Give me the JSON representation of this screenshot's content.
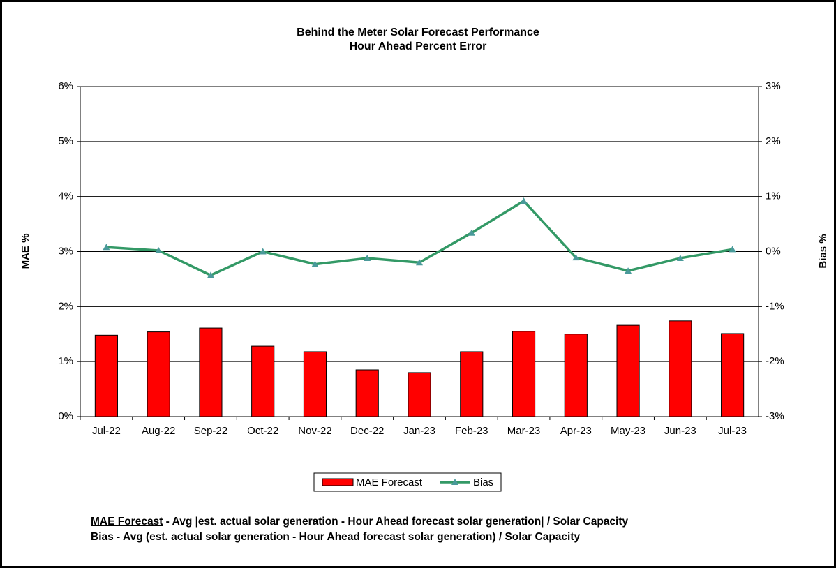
{
  "chart_data": {
    "type": "bar_line",
    "title": "Behind the Meter Solar Forecast Performance",
    "subtitle": "Hour Ahead Percent Error",
    "y_label": "MAE %",
    "y2_label": "Bias %",
    "categories": [
      "Jul-22",
      "Aug-22",
      "Sep-22",
      "Oct-22",
      "Nov-22",
      "Dec-22",
      "Jan-23",
      "Feb-23",
      "Mar-23",
      "Apr-23",
      "May-23",
      "Jun-23",
      "Jul-23"
    ],
    "series": [
      {
        "name": "MAE Forecast",
        "type": "bar",
        "color": "#ff0000",
        "values": [
          1.48,
          1.54,
          1.61,
          1.28,
          1.18,
          0.85,
          0.8,
          1.18,
          1.55,
          1.5,
          1.66,
          1.74,
          1.51
        ]
      },
      {
        "name": "Bias",
        "type": "line",
        "axis": "y2",
        "color": "#339966",
        "marker_color": "#4a9a9a",
        "values": [
          0.08,
          0.02,
          -0.43,
          0,
          -0.23,
          -0.12,
          -0.2,
          0.34,
          0.92,
          -0.11,
          -0.35,
          -0.12,
          0.04
        ]
      }
    ],
    "ylim": [
      0,
      6
    ],
    "yticks": [
      {
        "value": 0,
        "label": "0%"
      },
      {
        "value": 1,
        "label": "1%"
      },
      {
        "value": 2,
        "label": "2%"
      },
      {
        "value": 3,
        "label": "3%"
      },
      {
        "value": 4,
        "label": "4%"
      },
      {
        "value": 5,
        "label": "5%"
      },
      {
        "value": 6,
        "label": "6%"
      }
    ],
    "y2lim": [
      -3,
      3
    ],
    "y2ticks": [
      {
        "value": -3,
        "label": "-3%"
      },
      {
        "value": -2,
        "label": "-2%"
      },
      {
        "value": -1,
        "label": "-1%"
      },
      {
        "value": 0,
        "label": "0%"
      },
      {
        "value": 1,
        "label": "1%"
      },
      {
        "value": 2,
        "label": "2%"
      },
      {
        "value": 3,
        "label": "3%"
      }
    ],
    "grid": true,
    "legend": "bottom",
    "notes": [
      {
        "term": "MAE Forecast",
        "text": " - Avg |est. actual solar generation - Hour Ahead forecast solar generation| / Solar Capacity"
      },
      {
        "term": "Bias",
        "text": " - Avg (est. actual solar generation - Hour Ahead forecast solar generation) / Solar Capacity"
      }
    ]
  }
}
